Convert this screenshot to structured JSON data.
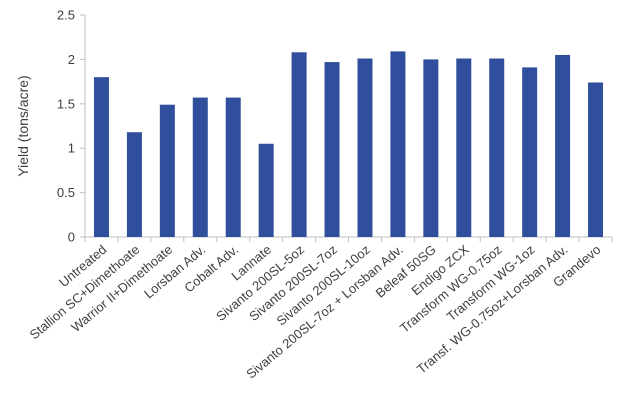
{
  "chart_data": {
    "type": "bar",
    "title": "",
    "xlabel": "",
    "ylabel": "Yield (tons/acre)",
    "ylim": [
      0,
      2.5
    ],
    "yticks": [
      "0",
      "0.5",
      "1",
      "1.5",
      "2",
      "2.5"
    ],
    "grid": false,
    "legend": "none",
    "bar_color": "#2f4f9c",
    "categories": [
      "Untreated",
      "Stallion SC+Dimethoate",
      "Warrior II+Dimethoate",
      "Lorsban Adv.",
      "Cobalt Adv.",
      "Lannate",
      "Sivanto 200SL-5oz",
      "Sivanto 200SL-7oz",
      "Sivanto 200SL-10oz",
      "Sivanto 200SL-7oz + Lorsban Adv.",
      "Beleaf 50SG",
      "Endigo ZCX",
      "Transform WG-0.75oz",
      "Transform WG-1oz",
      "Transf. WG-0.75oz+Lorsban Adv.",
      "Grandevo"
    ],
    "values": [
      1.8,
      1.18,
      1.49,
      1.57,
      1.57,
      1.05,
      2.08,
      1.97,
      2.01,
      2.09,
      2.0,
      2.01,
      2.01,
      1.91,
      2.05,
      1.74
    ]
  }
}
